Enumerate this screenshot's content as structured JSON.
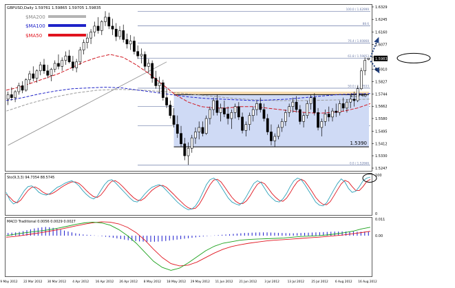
{
  "chart_data": {
    "type": "candlestick",
    "header": "GBPUSD,Daily  1.59761 1.59865 1.59705 1.59835",
    "legend": [
      {
        "label": "$MA200",
        "color": "#b4b4b4"
      },
      {
        "label": "$MA100",
        "color": "#1f23c8"
      },
      {
        "label": "$MA50",
        "color": "#e0141e"
      }
    ],
    "price_axis": {
      "min": 1.5247,
      "max": 1.6329,
      "ticks": [
        "1.6329",
        "1.6245",
        "1.6160",
        "1.6077",
        "1.5992",
        "1.5910",
        "1.5827",
        "1.5744",
        "1.5662",
        "1.5580",
        "1.5495",
        "1.5412",
        "1.5330",
        "1.5247"
      ],
      "current": "1.5983"
    },
    "fib_levels": [
      {
        "label": "100.0 / 1.62999",
        "value": 1.62999
      },
      {
        "label": "88.6",
        "value": 1.6202
      },
      {
        "label": "76.4 / 1.60868",
        "value": 1.60868
      },
      {
        "label": "61.8 / 1.59853",
        "value": 1.59853
      },
      {
        "label": "50.0 / 1.57833",
        "value": 1.57833
      },
      {
        "label": "38.2 / 1.56611",
        "value": 1.56611
      },
      {
        "label": "23.6 / 1.55305",
        "value": 1.55305
      },
      {
        "label": "0.0 / 1.52666",
        "value": 1.52666
      }
    ],
    "resistance_label": "1.5740",
    "support_label": "1.5390",
    "x_labels": [
      "9 May 2012",
      "22 Mar 2012",
      "30 Mar 2012",
      "4 Apr 2012",
      "16 Apr 2012",
      "26 Apr 2012",
      "8 May 2012",
      "18 May 2012",
      "29 May 2012",
      "11 Jun 2012",
      "21 Jun 2012",
      "3 Jul 2012",
      "13 Jul 2012",
      "25 Jul 2012",
      "6 Aug 2012",
      "16 Aug 2012"
    ],
    "candles": [
      [
        1.571,
        1.576,
        1.567,
        1.574
      ],
      [
        1.574,
        1.579,
        1.57,
        1.572
      ],
      [
        1.572,
        1.577,
        1.569,
        1.576
      ],
      [
        1.576,
        1.582,
        1.574,
        1.58
      ],
      [
        1.58,
        1.583,
        1.575,
        1.577
      ],
      [
        1.577,
        1.585,
        1.576,
        1.584
      ],
      [
        1.584,
        1.59,
        1.581,
        1.588
      ],
      [
        1.588,
        1.593,
        1.583,
        1.585
      ],
      [
        1.585,
        1.591,
        1.582,
        1.59
      ],
      [
        1.59,
        1.596,
        1.587,
        1.594
      ],
      [
        1.594,
        1.598,
        1.588,
        1.59
      ],
      [
        1.59,
        1.594,
        1.585,
        1.587
      ],
      [
        1.587,
        1.592,
        1.583,
        1.591
      ],
      [
        1.591,
        1.597,
        1.589,
        1.595
      ],
      [
        1.595,
        1.601,
        1.591,
        1.593
      ],
      [
        1.593,
        1.599,
        1.59,
        1.597
      ],
      [
        1.597,
        1.603,
        1.594,
        1.6
      ],
      [
        1.6,
        1.604,
        1.595,
        1.596
      ],
      [
        1.596,
        1.6,
        1.59,
        1.592
      ],
      [
        1.592,
        1.598,
        1.589,
        1.596
      ],
      [
        1.596,
        1.606,
        1.594,
        1.604
      ],
      [
        1.604,
        1.611,
        1.601,
        1.609
      ],
      [
        1.609,
        1.615,
        1.605,
        1.612
      ],
      [
        1.612,
        1.618,
        1.608,
        1.616
      ],
      [
        1.616,
        1.623,
        1.613,
        1.62
      ],
      [
        1.62,
        1.626,
        1.615,
        1.617
      ],
      [
        1.617,
        1.624,
        1.614,
        1.623
      ],
      [
        1.623,
        1.63,
        1.62,
        1.626
      ],
      [
        1.626,
        1.629,
        1.618,
        1.62
      ],
      [
        1.62,
        1.625,
        1.614,
        1.618
      ],
      [
        1.618,
        1.622,
        1.61,
        1.613
      ],
      [
        1.613,
        1.62,
        1.611,
        1.617
      ],
      [
        1.617,
        1.621,
        1.609,
        1.611
      ],
      [
        1.611,
        1.615,
        1.605,
        1.608
      ],
      [
        1.608,
        1.614,
        1.604,
        1.61
      ],
      [
        1.61,
        1.613,
        1.601,
        1.603
      ],
      [
        1.603,
        1.607,
        1.598,
        1.6
      ],
      [
        1.6,
        1.605,
        1.595,
        1.601
      ],
      [
        1.601,
        1.603,
        1.59,
        1.593
      ],
      [
        1.593,
        1.598,
        1.588,
        1.595
      ],
      [
        1.595,
        1.597,
        1.582,
        1.585
      ],
      [
        1.585,
        1.59,
        1.578,
        1.58
      ],
      [
        1.58,
        1.586,
        1.575,
        1.582
      ],
      [
        1.582,
        1.584,
        1.57,
        1.572
      ],
      [
        1.572,
        1.578,
        1.565,
        1.567
      ],
      [
        1.567,
        1.57,
        1.558,
        1.56
      ],
      [
        1.56,
        1.565,
        1.552,
        1.554
      ],
      [
        1.554,
        1.56,
        1.545,
        1.548
      ],
      [
        1.548,
        1.553,
        1.539,
        1.541
      ],
      [
        1.541,
        1.545,
        1.53,
        1.533
      ],
      [
        1.533,
        1.542,
        1.5269,
        1.538
      ],
      [
        1.538,
        1.547,
        1.535,
        1.545
      ],
      [
        1.545,
        1.552,
        1.541,
        1.549
      ],
      [
        1.549,
        1.556,
        1.544,
        1.552
      ],
      [
        1.552,
        1.556,
        1.546,
        1.548
      ],
      [
        1.548,
        1.56,
        1.547,
        1.558
      ],
      [
        1.558,
        1.566,
        1.554,
        1.564
      ],
      [
        1.564,
        1.572,
        1.56,
        1.57
      ],
      [
        1.57,
        1.574,
        1.56,
        1.562
      ],
      [
        1.562,
        1.568,
        1.556,
        1.565
      ],
      [
        1.565,
        1.57,
        1.559,
        1.561
      ],
      [
        1.561,
        1.566,
        1.554,
        1.558
      ],
      [
        1.558,
        1.564,
        1.551,
        1.562
      ],
      [
        1.562,
        1.568,
        1.558,
        1.566
      ],
      [
        1.566,
        1.569,
        1.557,
        1.559
      ],
      [
        1.559,
        1.562,
        1.548,
        1.55
      ],
      [
        1.55,
        1.556,
        1.546,
        1.554
      ],
      [
        1.554,
        1.562,
        1.55,
        1.56
      ],
      [
        1.56,
        1.566,
        1.556,
        1.564
      ],
      [
        1.564,
        1.57,
        1.56,
        1.568
      ],
      [
        1.568,
        1.572,
        1.562,
        1.564
      ],
      [
        1.564,
        1.568,
        1.556,
        1.558
      ],
      [
        1.558,
        1.561,
        1.547,
        1.549
      ],
      [
        1.549,
        1.554,
        1.54,
        1.543
      ],
      [
        1.543,
        1.548,
        1.539,
        1.546
      ],
      [
        1.546,
        1.554,
        1.544,
        1.552
      ],
      [
        1.552,
        1.558,
        1.549,
        1.556
      ],
      [
        1.556,
        1.564,
        1.553,
        1.562
      ],
      [
        1.562,
        1.568,
        1.559,
        1.566
      ],
      [
        1.566,
        1.572,
        1.562,
        1.569
      ],
      [
        1.569,
        1.573,
        1.562,
        1.564
      ],
      [
        1.564,
        1.567,
        1.554,
        1.556
      ],
      [
        1.556,
        1.562,
        1.552,
        1.56
      ],
      [
        1.56,
        1.57,
        1.558,
        1.568
      ],
      [
        1.568,
        1.574,
        1.564,
        1.572
      ],
      [
        1.572,
        1.575,
        1.56,
        1.562
      ],
      [
        1.562,
        1.565,
        1.55,
        1.552
      ],
      [
        1.552,
        1.558,
        1.546,
        1.556
      ],
      [
        1.556,
        1.564,
        1.553,
        1.561
      ],
      [
        1.561,
        1.566,
        1.556,
        1.559
      ],
      [
        1.559,
        1.565,
        1.556,
        1.563
      ],
      [
        1.563,
        1.568,
        1.559,
        1.562
      ],
      [
        1.562,
        1.57,
        1.56,
        1.568
      ],
      [
        1.568,
        1.572,
        1.563,
        1.565
      ],
      [
        1.565,
        1.571,
        1.562,
        1.569
      ],
      [
        1.569,
        1.574,
        1.565,
        1.571
      ],
      [
        1.571,
        1.576,
        1.566,
        1.57
      ],
      [
        1.57,
        1.58,
        1.569,
        1.578
      ],
      [
        1.578,
        1.592,
        1.577,
        1.59
      ],
      [
        1.59,
        1.599,
        1.587,
        1.597
      ],
      [
        1.5976,
        1.5987,
        1.5971,
        1.5984
      ]
    ],
    "ma50": [
      1.577,
      1.579,
      1.582,
      1.585,
      1.588,
      1.592,
      1.596,
      1.599,
      1.601,
      1.599,
      1.594,
      1.588,
      1.581,
      1.574,
      1.569,
      1.566,
      1.565,
      1.565,
      1.566,
      1.566,
      1.565,
      1.564,
      1.563,
      1.562,
      1.5615,
      1.562,
      1.563,
      1.565,
      1.568
    ],
    "ma100": [
      1.57,
      1.572,
      1.5745,
      1.5765,
      1.578,
      1.5785,
      1.579,
      1.5785,
      1.577,
      1.5755,
      1.574,
      1.5725,
      1.5715,
      1.571,
      1.5705,
      1.57,
      1.5705,
      1.571,
      1.572,
      1.573,
      1.574,
      1.5745,
      1.5748
    ],
    "ma200": [
      1.563,
      1.568,
      1.572,
      1.575,
      1.577,
      1.5775,
      1.577,
      1.576,
      1.5745,
      1.573,
      1.5715,
      1.5705,
      1.57,
      1.57,
      1.5703,
      1.5706,
      1.571
    ],
    "trendline": [
      [
        1.54,
        0
      ],
      [
        1.596,
        44
      ]
    ],
    "stoch": {
      "title": "Sto(9,3,3) 94.7354 88.5745",
      "range": [
        0,
        100
      ],
      "ticks": [
        "100",
        "0"
      ],
      "main": [
        55,
        35,
        25,
        30,
        45,
        60,
        70,
        72,
        65,
        55,
        50,
        48,
        52,
        60,
        68,
        72,
        78,
        82,
        85,
        80,
        72,
        60,
        50,
        42,
        38,
        45,
        60,
        75,
        85,
        88,
        80,
        70,
        60,
        50,
        40,
        32,
        30,
        38,
        50,
        60,
        68,
        72,
        75,
        70,
        60,
        50,
        40,
        30,
        22,
        15,
        10,
        12,
        20,
        35,
        55,
        75,
        88,
        92,
        85,
        70,
        55,
        40,
        30,
        25,
        22,
        30,
        45,
        62,
        78,
        85,
        80,
        65,
        50,
        40,
        32,
        30,
        38,
        52,
        70,
        85,
        92,
        88,
        75,
        60,
        45,
        30,
        22,
        20,
        28,
        45,
        62,
        78,
        90,
        82,
        65,
        55,
        58,
        70,
        85,
        92,
        94.7
      ],
      "signal": [
        50,
        42,
        32,
        28,
        35,
        48,
        60,
        68,
        69,
        64,
        56,
        51,
        50,
        54,
        60,
        67,
        73,
        78,
        82,
        82,
        78,
        70,
        60,
        51,
        44,
        42,
        48,
        60,
        74,
        84,
        85,
        79,
        70,
        60,
        50,
        41,
        35,
        34,
        40,
        50,
        60,
        67,
        72,
        73,
        68,
        59,
        50,
        40,
        31,
        22,
        15,
        12,
        14,
        24,
        40,
        58,
        75,
        87,
        89,
        82,
        69,
        55,
        42,
        32,
        26,
        26,
        33,
        46,
        62,
        76,
        82,
        77,
        65,
        52,
        42,
        34,
        32,
        40,
        54,
        70,
        83,
        89,
        84,
        71,
        57,
        42,
        31,
        24,
        23,
        31,
        46,
        62,
        77,
        86,
        82,
        70,
        60,
        60,
        70,
        83,
        88.6
      ]
    },
    "macd": {
      "title": "MACD Traditional 0.0056 0.0029 0.0027",
      "range": [
        -0.026,
        0.011
      ],
      "ticks": [
        "0.011",
        "0.00"
      ],
      "green": [
        0.0,
        0.001,
        0.0018,
        0.0025,
        0.0032,
        0.004,
        0.005,
        0.0062,
        0.0075,
        0.0085,
        0.009,
        0.0085,
        0.007,
        0.004,
        0.0,
        -0.005,
        -0.011,
        -0.017,
        -0.021,
        -0.023,
        -0.0215,
        -0.018,
        -0.014,
        -0.01,
        -0.007,
        -0.005,
        -0.004,
        -0.003,
        -0.0025,
        -0.0022,
        -0.002,
        -0.0018,
        -0.0015,
        -0.001,
        -0.0005,
        -0.0003,
        0.0,
        0.0005,
        0.0012,
        0.002,
        0.003,
        0.0045,
        0.0056
      ],
      "red": [
        -0.001,
        -0.0005,
        0.0003,
        0.0012,
        0.002,
        0.003,
        0.004,
        0.0052,
        0.0065,
        0.0076,
        0.0086,
        0.0092,
        0.009,
        0.0078,
        0.0055,
        0.002,
        -0.003,
        -0.009,
        -0.0145,
        -0.0185,
        -0.02,
        -0.0195,
        -0.0175,
        -0.0145,
        -0.0115,
        -0.009,
        -0.0072,
        -0.006,
        -0.005,
        -0.0042,
        -0.0035,
        -0.003,
        -0.0026,
        -0.0022,
        -0.0018,
        -0.0014,
        -0.001,
        -0.0005,
        0.0,
        0.0006,
        0.0013,
        0.0021,
        0.0029
      ],
      "histogram": [
        0.0018,
        0.002,
        0.0022,
        0.0025,
        0.003,
        0.0036,
        0.0042,
        0.0048,
        0.0052,
        0.0056,
        0.0058,
        0.0056,
        0.0052,
        0.0046,
        0.004,
        0.0034,
        0.0028,
        0.0022,
        0.0016,
        0.0012,
        0.0008,
        0.0006,
        0.0004,
        0.0002,
        -0.0001,
        -0.0004,
        -0.0007,
        -0.001,
        -0.0014,
        -0.0018,
        -0.0022,
        -0.0026,
        -0.003,
        -0.0034,
        -0.0036,
        -0.0038,
        -0.0039,
        -0.004,
        -0.0041,
        -0.004,
        -0.0039,
        -0.0037,
        -0.0035,
        -0.0032,
        -0.0029,
        -0.0026,
        -0.0023,
        -0.002,
        -0.0017,
        -0.0014,
        -0.0011,
        -0.0008,
        -0.0005,
        -0.0003,
        -0.0001,
        0.0002,
        0.0004,
        0.0006,
        0.0008,
        0.001,
        0.0012,
        0.0014,
        0.0016,
        0.0018,
        0.0019,
        0.002,
        0.0021,
        0.0022,
        0.0022,
        0.0022,
        0.0021,
        0.002,
        0.0019,
        0.0018,
        0.0017,
        0.0016,
        0.0016,
        0.0017,
        0.0018,
        0.0019,
        0.002,
        0.0021,
        0.0022,
        0.0023,
        0.0024,
        0.0025,
        0.0026,
        0.0027,
        0.0027,
        0.0028,
        0.0028,
        0.0027,
        0.0027,
        0.0026,
        0.0026,
        0.0027,
        0.0027
      ]
    }
  }
}
